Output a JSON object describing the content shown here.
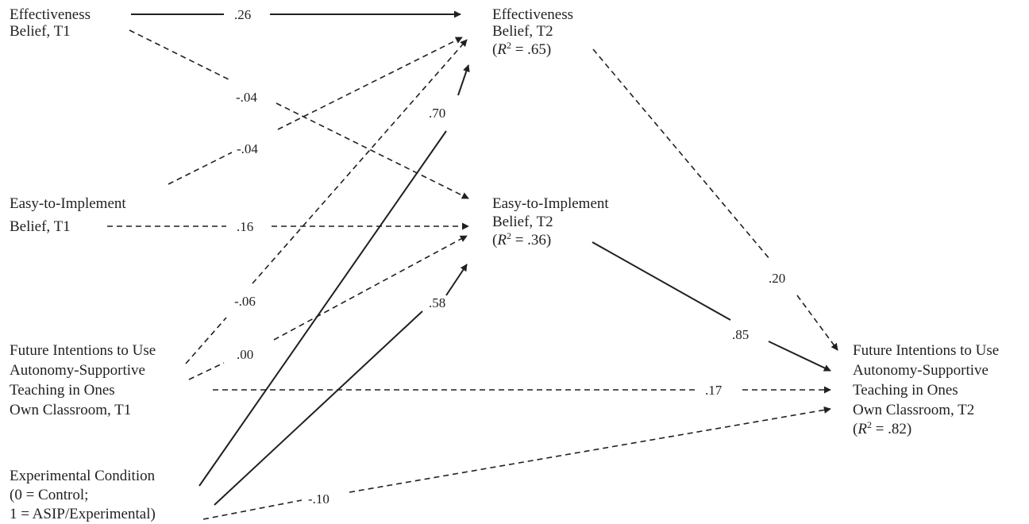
{
  "nodes": {
    "eff_t1": [
      "Effectiveness",
      "Belief, T1"
    ],
    "eff_t2": [
      "Effectiveness",
      "Belief, T2"
    ],
    "eff_t2_r2": ".65",
    "easy_t1": [
      "Easy-to-Implement",
      "Belief, T1"
    ],
    "easy_t2": [
      "Easy-to-Implement",
      "Belief, T2"
    ],
    "easy_t2_r2": ".36",
    "fut_t1": [
      "Future Intentions to Use",
      "Autonomy-Supportive",
      "Teaching in Ones",
      "Own Classroom, T1"
    ],
    "fut_t2": [
      "Future Intentions to Use",
      "Autonomy-Supportive",
      "Teaching in Ones",
      "Own Classroom, T2"
    ],
    "fut_t2_r2": ".82",
    "exp": [
      "Experimental Condition",
      "(0 = Control;",
      "1 = ASIP/Experimental)"
    ]
  },
  "r2_label": "R",
  "coefficients": {
    "eff1_eff2": ".26",
    "eff1_easy2": "-.04",
    "easy1_eff2": "-.04",
    "easy1_easy2": ".16",
    "exp_eff2": ".70",
    "fut1_eff2": "-.06",
    "fut1_easy2": ".00",
    "exp_easy2": ".58",
    "eff2_fut2": ".20",
    "easy2_fut2": ".85",
    "fut1_fut2": ".17",
    "exp_fut2": "-.10"
  },
  "paths": [
    {
      "from": "eff_t1",
      "to": "eff_t2",
      "style": "solid"
    },
    {
      "from": "eff_t1",
      "to": "easy_t2",
      "style": "dashed"
    },
    {
      "from": "easy_t1",
      "to": "eff_t2",
      "style": "dashed"
    },
    {
      "from": "easy_t1",
      "to": "easy_t2",
      "style": "dashed"
    },
    {
      "from": "fut_t1",
      "to": "eff_t2",
      "style": "dashed"
    },
    {
      "from": "fut_t1",
      "to": "easy_t2",
      "style": "dashed"
    },
    {
      "from": "fut_t1",
      "to": "fut_t2",
      "style": "dashed"
    },
    {
      "from": "exp",
      "to": "eff_t2",
      "style": "solid"
    },
    {
      "from": "exp",
      "to": "easy_t2",
      "style": "solid"
    },
    {
      "from": "exp",
      "to": "fut_t2",
      "style": "dashed"
    },
    {
      "from": "eff_t2",
      "to": "fut_t2",
      "style": "dashed"
    },
    {
      "from": "easy_t2",
      "to": "fut_t2",
      "style": "solid"
    }
  ]
}
